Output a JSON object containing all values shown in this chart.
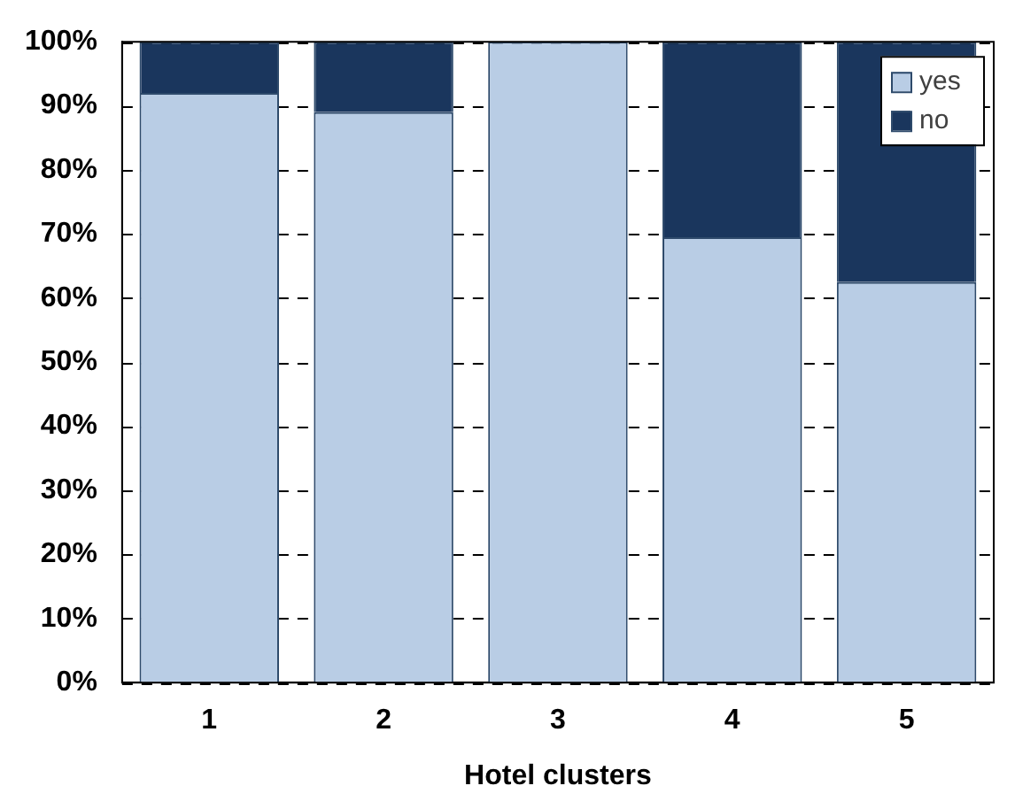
{
  "chart_data": {
    "type": "bar",
    "stacked": true,
    "xlabel": "Hotel clusters",
    "categories": [
      "1",
      "2",
      "3",
      "4",
      "5"
    ],
    "series": [
      {
        "name": "yes",
        "color": "#b9cde5",
        "values": [
          92,
          89,
          100,
          69.5,
          62.5
        ]
      },
      {
        "name": "no",
        "color": "#1a365d",
        "values": [
          8,
          11,
          0,
          30.5,
          37.5
        ]
      }
    ],
    "ylim": [
      0,
      100
    ],
    "yticks": [
      {
        "value": 0,
        "label": "0%"
      },
      {
        "value": 10,
        "label": "10%"
      },
      {
        "value": 20,
        "label": "20%"
      },
      {
        "value": 30,
        "label": "30%"
      },
      {
        "value": 40,
        "label": "40%"
      },
      {
        "value": 50,
        "label": "50%"
      },
      {
        "value": 60,
        "label": "60%"
      },
      {
        "value": 70,
        "label": "70%"
      },
      {
        "value": 80,
        "label": "80%"
      },
      {
        "value": 90,
        "label": "90%"
      },
      {
        "value": 100,
        "label": "100%"
      }
    ],
    "grid": "y",
    "legend": "top right"
  }
}
